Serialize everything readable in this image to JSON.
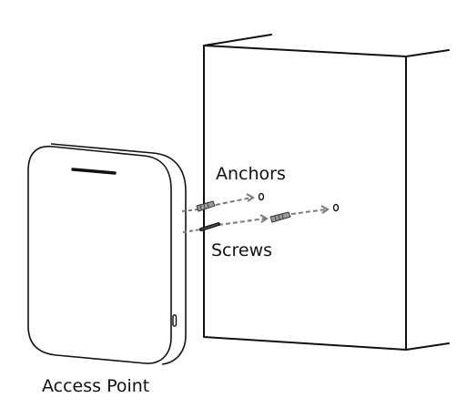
{
  "labels": {
    "anchors": "Anchors",
    "screws": "Screws",
    "access_point": "Access Point"
  },
  "colors": {
    "outline": "#111111",
    "arrow": "#7a7a7a",
    "background": "#ffffff"
  }
}
